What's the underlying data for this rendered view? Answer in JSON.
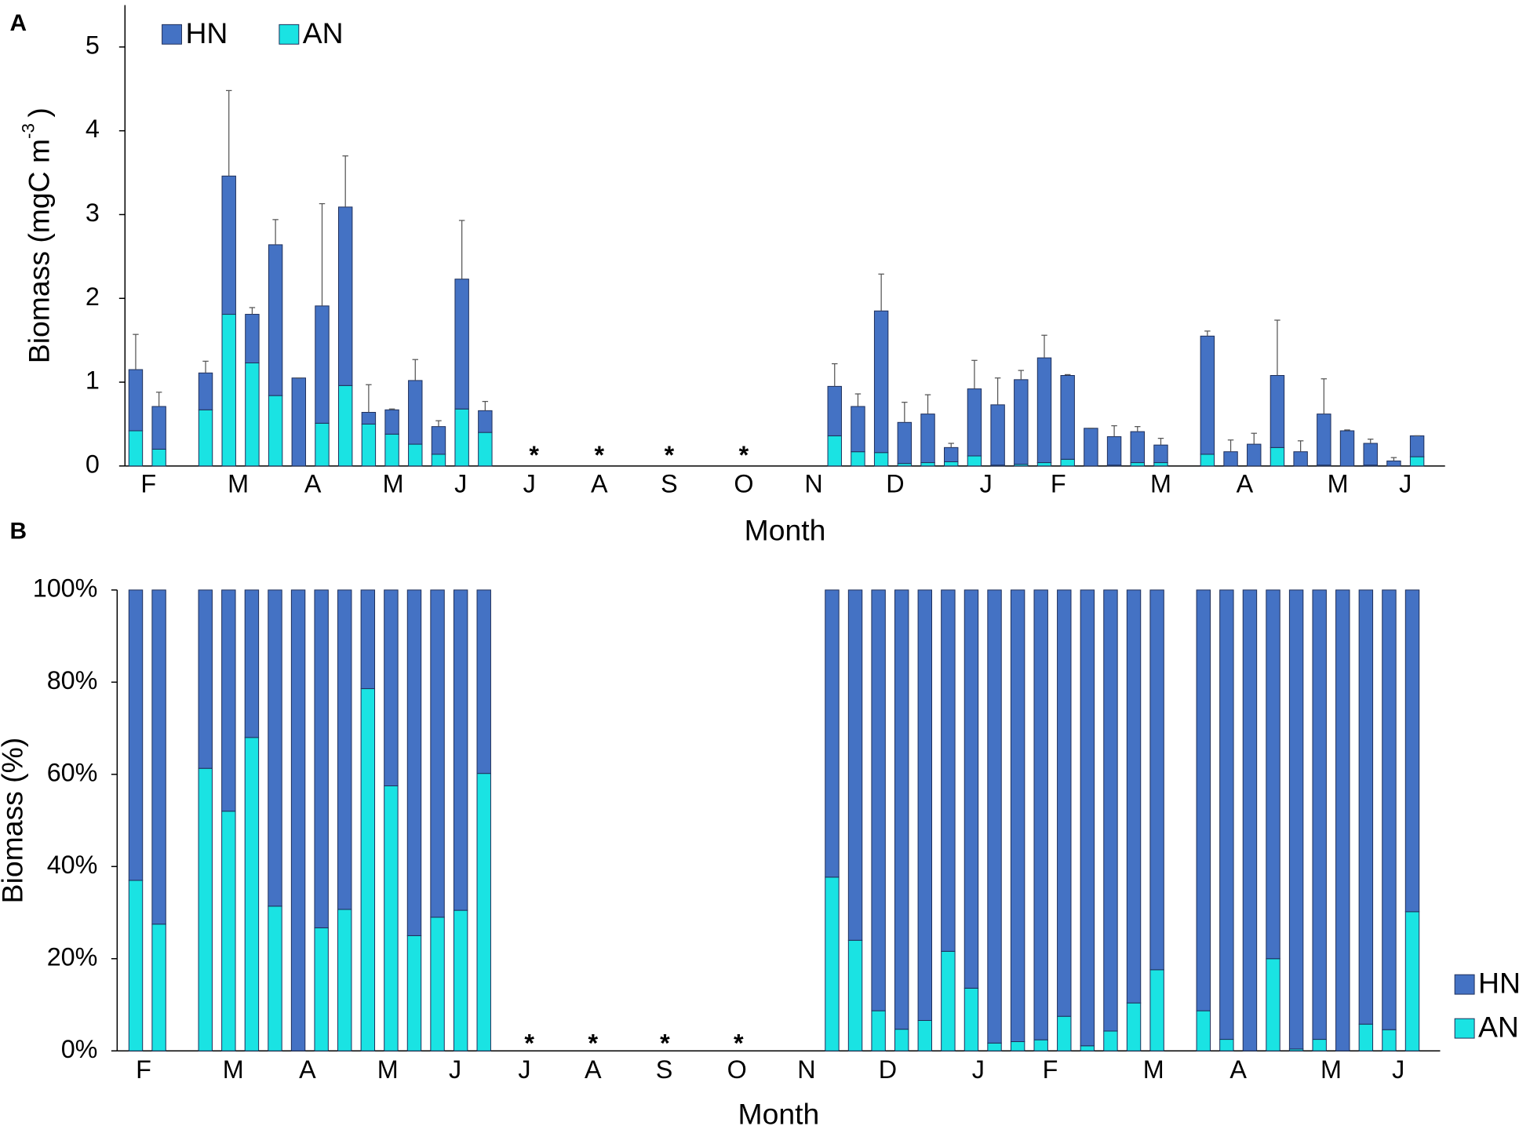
{
  "chart_data": [
    {
      "type": "bar",
      "panel": "A",
      "x_label": "Month",
      "y_label": {
        "text": "Biomass (mgC m",
        "superscript": "-3",
        "after": ")"
      },
      "x": [
        0,
        1,
        3,
        4,
        5,
        6,
        7,
        8,
        9,
        10,
        11,
        12,
        13,
        14,
        15,
        30,
        31,
        32,
        33,
        34,
        35,
        36,
        37,
        38,
        39,
        40,
        41,
        42,
        43,
        44,
        46,
        47,
        48,
        49,
        50,
        51,
        52,
        53,
        54,
        55
      ],
      "series": [
        {
          "name": "HN",
          "color": "#4472c4",
          "values": [
            0.73,
            0.51,
            0.44,
            1.65,
            0.58,
            1.8,
            1.05,
            1.4,
            2.13,
            0.14,
            0.29,
            0.76,
            0.33,
            1.55,
            0.26,
            0.59,
            0.54,
            1.69,
            0.49,
            0.58,
            0.17,
            0.8,
            0.72,
            1.01,
            1.25,
            1.0,
            0.45,
            0.34,
            0.37,
            0.21,
            1.41,
            0.17,
            0.26,
            0.86,
            0.17,
            0.61,
            0.42,
            0.26,
            0.06,
            0.25
          ],
          "errors": [
            0.42,
            0.17,
            0.14,
            1.02,
            0.08,
            0.3,
            0,
            1.22,
            0.61,
            0.33,
            0.01,
            0.25,
            0.07,
            0.7,
            0.11,
            0.27,
            0.15,
            0.44,
            0.24,
            0.23,
            0.05,
            0.34,
            0.32,
            0.11,
            0.27,
            0.01,
            0,
            0.13,
            0.06,
            0.08,
            0.06,
            0.14,
            0.13,
            0.66,
            0.13,
            0.42,
            0.01,
            0.05,
            0.04,
            0
          ]
        },
        {
          "name": "AN",
          "color": "#1ae3e3",
          "values": [
            0.42,
            0.2,
            0.67,
            1.81,
            1.23,
            0.84,
            0,
            0.51,
            0.96,
            0.5,
            0.38,
            0.26,
            0.14,
            0.68,
            0.4,
            0.36,
            0.17,
            0.16,
            0.03,
            0.04,
            0.05,
            0.12,
            0.01,
            0.02,
            0.04,
            0.08,
            0,
            0.01,
            0.04,
            0.04,
            0.14,
            0,
            0,
            0.22,
            0,
            0.01,
            0,
            0.01,
            0,
            0.11
          ]
        }
      ],
      "xlim": [
        -0.46,
        56.2
      ],
      "xticks": [
        {
          "value": 0.55,
          "label": "F"
        },
        {
          "value": 4.4,
          "label": "M"
        },
        {
          "value": 7.6,
          "label": "A"
        },
        {
          "value": 11.05,
          "label": "M"
        },
        {
          "value": 13.95,
          "label": "J"
        },
        {
          "value": 16.9,
          "label": "J"
        },
        {
          "value": 19.9,
          "label": "A"
        },
        {
          "value": 22.9,
          "label": "S"
        },
        {
          "value": 26.1,
          "label": "O"
        },
        {
          "value": 29.1,
          "label": "N"
        },
        {
          "value": 32.6,
          "label": "D"
        },
        {
          "value": 36.5,
          "label": "J"
        },
        {
          "value": 39.6,
          "label": "F"
        },
        {
          "value": 44,
          "label": "M"
        },
        {
          "value": 47.6,
          "label": "A"
        },
        {
          "value": 51.6,
          "label": "M"
        },
        {
          "value": 54.5,
          "label": "J"
        }
      ],
      "ylim": [
        0,
        5.5
      ],
      "yticks": [
        0,
        1,
        2,
        3,
        4,
        5
      ],
      "annotations": [
        {
          "text": "*",
          "x": 17.1
        },
        {
          "text": "*",
          "x": 19.9
        },
        {
          "text": "*",
          "x": 22.9
        },
        {
          "text": "*",
          "x": 26.1
        }
      ],
      "legend": "upper left",
      "grid": false
    },
    {
      "type": "bar",
      "panel": "B",
      "x_label": "Month",
      "y_label": {
        "text": "Biomass (%)"
      },
      "x": [
        0,
        1,
        3,
        4,
        5,
        6,
        7,
        8,
        9,
        10,
        11,
        12,
        13,
        14,
        15,
        30,
        31,
        32,
        33,
        34,
        35,
        36,
        37,
        38,
        39,
        40,
        41,
        42,
        43,
        44,
        46,
        47,
        48,
        49,
        50,
        51,
        52,
        53,
        54,
        55
      ],
      "series": [
        {
          "name": "HN",
          "color": "#4472c4",
          "values": [
            63,
            72.5,
            38.7,
            48,
            32,
            68.6,
            100,
            73.3,
            69.3,
            21.4,
            42.5,
            75,
            71,
            69.5,
            39.8,
            62.3,
            76,
            91.3,
            95.3,
            93.4,
            78.4,
            86.4,
            98.3,
            98,
            97.6,
            92.5,
            98.9,
            95.7,
            89.6,
            82.4,
            91.3,
            97.5,
            100,
            80,
            99.6,
            97.5,
            100,
            94.2,
            95.4,
            69.8
          ]
        },
        {
          "name": "AN",
          "color": "#1ae3e3",
          "values": [
            37,
            27.5,
            61.3,
            52,
            68,
            31.4,
            0,
            26.7,
            30.7,
            78.6,
            57.5,
            25,
            29,
            30.5,
            60.2,
            37.7,
            24,
            8.7,
            4.7,
            6.6,
            21.6,
            13.6,
            1.7,
            2,
            2.4,
            7.5,
            1.1,
            4.3,
            10.4,
            17.6,
            8.7,
            2.5,
            0,
            20,
            0.4,
            2.5,
            0,
            5.8,
            4.6,
            30.2
          ]
        }
      ],
      "xlim": [
        -0.8,
        56.2
      ],
      "xticks": [
        {
          "value": 0.34,
          "label": "F"
        },
        {
          "value": 4.2,
          "label": "M"
        },
        {
          "value": 7.4,
          "label": "A"
        },
        {
          "value": 10.86,
          "label": "M"
        },
        {
          "value": 13.76,
          "label": "J"
        },
        {
          "value": 16.75,
          "label": "J"
        },
        {
          "value": 19.7,
          "label": "A"
        },
        {
          "value": 22.77,
          "label": "S"
        },
        {
          "value": 25.9,
          "label": "O"
        },
        {
          "value": 28.9,
          "label": "N"
        },
        {
          "value": 32.4,
          "label": "D"
        },
        {
          "value": 36.3,
          "label": "J"
        },
        {
          "value": 39.4,
          "label": "F"
        },
        {
          "value": 43.85,
          "label": "M"
        },
        {
          "value": 47.5,
          "label": "A"
        },
        {
          "value": 51.5,
          "label": "M"
        },
        {
          "value": 54.4,
          "label": "J"
        }
      ],
      "ylim": [
        0,
        100
      ],
      "yticks": [
        {
          "value": 0,
          "label": "0%"
        },
        {
          "value": 20,
          "label": "20%"
        },
        {
          "value": 40,
          "label": "40%"
        },
        {
          "value": 60,
          "label": "60%"
        },
        {
          "value": 80,
          "label": "80%"
        },
        {
          "value": 100,
          "label": "100%"
        }
      ],
      "annotations": [
        {
          "text": "*",
          "x": 16.96
        },
        {
          "text": "*",
          "x": 19.7
        },
        {
          "text": "*",
          "x": 22.8
        },
        {
          "text": "*",
          "x": 25.97
        }
      ],
      "legend": "lower right",
      "grid": false
    }
  ]
}
